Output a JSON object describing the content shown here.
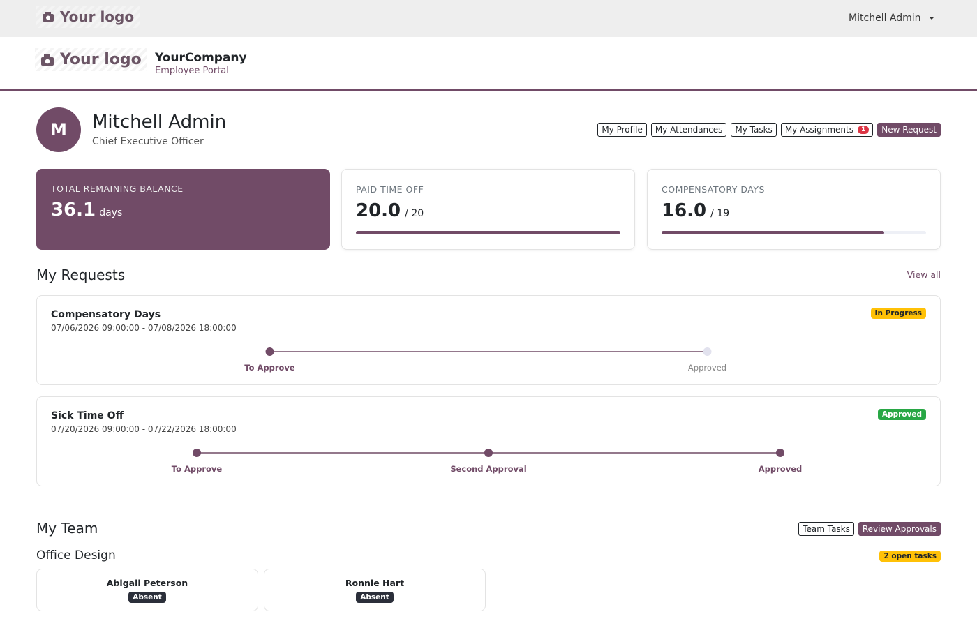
{
  "topbar": {
    "logo": "Your logo",
    "user": "Mitchell Admin"
  },
  "header": {
    "logo": "Your logo",
    "company": "YourCompany",
    "subtitle": "Employee Portal"
  },
  "profile": {
    "initial": "M",
    "name": "Mitchell Admin",
    "job": "Chief Executive Officer",
    "buttons": [
      {
        "label": "My Profile"
      },
      {
        "label": "My Attendances"
      },
      {
        "label": "My Tasks"
      },
      {
        "label": "My Assignments",
        "badge": "1"
      },
      {
        "label": "New Request"
      }
    ]
  },
  "balance": {
    "label": "TOTAL REMAINING BALANCE",
    "value": "36.1",
    "unit": "days"
  },
  "allocations": [
    {
      "label": "PAID TIME OFF",
      "value": "20.0",
      "total": "/ 20"
    },
    {
      "label": "COMPENSATORY DAYS",
      "value": "16.0",
      "total": "/ 19"
    }
  ],
  "requests": {
    "title": "My Requests",
    "link": "View all",
    "items": [
      {
        "name": "Compensatory Days",
        "dates": "07/06/2026 09:00:00 - 07/08/2026 18:00:00",
        "status": "In Progress",
        "status_color": "#ffc107",
        "status_text_color": "#212529",
        "steps": [
          {
            "label": "To Approve",
            "done": true
          },
          {
            "label": "Approved",
            "done": false
          }
        ]
      },
      {
        "name": "Sick Time Off",
        "dates": "07/20/2026 09:00:00 - 07/22/2026 18:00:00",
        "status": "Approved",
        "status_color": "#28a745",
        "status_text_color": "#ffffff",
        "steps": [
          {
            "label": "To Approve",
            "done": true
          },
          {
            "label": "Second Approval",
            "done": true
          },
          {
            "label": "Approved",
            "done": true
          }
        ]
      }
    ]
  },
  "team": {
    "title": "My Team",
    "buttons": [
      "Team Tasks",
      "Review Approvals"
    ],
    "group": "Office Design",
    "tasks": "2 open tasks",
    "members": [
      {
        "name": "Abigail Peterson",
        "status": "Absent"
      },
      {
        "name": "Ronnie Hart",
        "status": "Absent"
      }
    ]
  }
}
